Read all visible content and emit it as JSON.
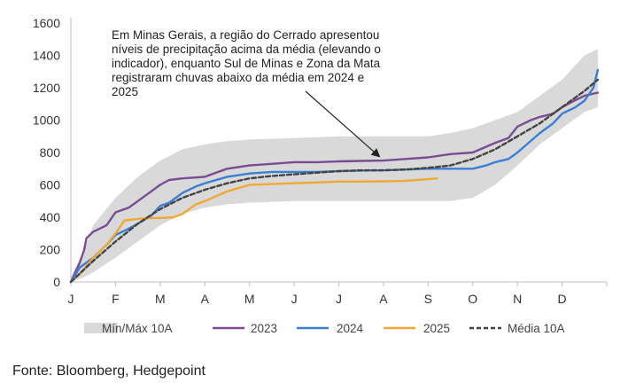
{
  "chart_data": {
    "type": "line",
    "title": "",
    "xlabel": "",
    "ylabel": "",
    "ylim": [
      0,
      1600
    ],
    "yticks": [
      0,
      200,
      400,
      600,
      800,
      1000,
      1200,
      1400,
      1600
    ],
    "xlim": [
      0,
      12
    ],
    "months": [
      "J",
      "F",
      "M",
      "A",
      "M",
      "J",
      "J",
      "A",
      "S",
      "O",
      "N",
      "D"
    ],
    "grid": false,
    "legend_position": "bottom",
    "annotation": {
      "lines": [
        "Em Minas Gerais, a região do Cerrado apresentou",
        "níveis de precipitação acima da média (elevando o",
        "indicador), enquanto Sul de Minas e Zona da Mata",
        "registraram chuvas abaixo da média em 2024 e",
        "2025"
      ],
      "arrow_to": [
        6.9,
        755
      ]
    },
    "band": {
      "name": "Mín/Máx 10A",
      "color": "#d9d9d9",
      "x": [
        0,
        0.3,
        0.5,
        1.0,
        1.5,
        2.0,
        2.5,
        3.0,
        3.5,
        4.0,
        5.0,
        6.0,
        7.0,
        8.0,
        8.5,
        9.0,
        9.5,
        10.0,
        10.5,
        11.0,
        11.5,
        11.8
      ],
      "min": [
        0,
        30,
        60,
        150,
        250,
        350,
        420,
        460,
        480,
        490,
        500,
        500,
        500,
        500,
        500,
        520,
        600,
        720,
        850,
        950,
        1050,
        1080
      ],
      "max": [
        30,
        200,
        350,
        520,
        650,
        750,
        820,
        850,
        870,
        880,
        890,
        900,
        900,
        900,
        920,
        950,
        1000,
        1050,
        1150,
        1250,
        1400,
        1440
      ]
    },
    "series": [
      {
        "name": "2023",
        "color": "#7b4b94",
        "style": "solid",
        "x": [
          0,
          0.1,
          0.2,
          0.3,
          0.35,
          0.5,
          0.8,
          1.0,
          1.3,
          1.5,
          1.8,
          2.0,
          2.2,
          2.5,
          3.0,
          3.3,
          3.5,
          4.0,
          4.5,
          5.0,
          5.5,
          6.0,
          6.5,
          7.0,
          7.5,
          8.0,
          8.5,
          9.0,
          9.5,
          9.8,
          10.0,
          10.3,
          10.5,
          10.8,
          11.0,
          11.2,
          11.5,
          11.8
        ],
        "y": [
          0,
          60,
          120,
          200,
          270,
          310,
          350,
          430,
          460,
          500,
          560,
          600,
          630,
          640,
          650,
          680,
          700,
          720,
          730,
          740,
          740,
          745,
          748,
          750,
          760,
          770,
          790,
          800,
          860,
          890,
          960,
          1000,
          1020,
          1040,
          1080,
          1110,
          1150,
          1170
        ]
      },
      {
        "name": "2024",
        "color": "#3a7fd5",
        "style": "solid",
        "x": [
          0,
          0.2,
          0.5,
          0.8,
          1.0,
          1.3,
          1.5,
          1.8,
          2.0,
          2.2,
          2.5,
          2.8,
          3.0,
          3.5,
          4.0,
          4.5,
          5.0,
          5.5,
          6.0,
          6.5,
          7.0,
          7.5,
          8.0,
          8.5,
          9.0,
          9.3,
          9.5,
          9.8,
          10.0,
          10.5,
          10.8,
          11.0,
          11.3,
          11.5,
          11.7,
          11.8
        ],
        "y": [
          0,
          90,
          150,
          230,
          290,
          330,
          360,
          410,
          470,
          490,
          550,
          590,
          610,
          650,
          670,
          680,
          680,
          680,
          685,
          688,
          690,
          695,
          700,
          700,
          700,
          720,
          740,
          760,
          800,
          920,
          980,
          1040,
          1080,
          1120,
          1200,
          1310
        ]
      },
      {
        "name": "2025",
        "color": "#f0a935",
        "style": "solid",
        "x": [
          0,
          0.2,
          0.5,
          0.8,
          1.0,
          1.2,
          1.5,
          1.8,
          2.0,
          2.3,
          2.5,
          2.8,
          3.0,
          3.5,
          4.0,
          4.5,
          5.0,
          5.5,
          6.0,
          6.5,
          7.0,
          7.5,
          8.0,
          8.2
        ],
        "y": [
          0,
          50,
          150,
          230,
          300,
          380,
          390,
          395,
          395,
          400,
          420,
          480,
          500,
          560,
          600,
          605,
          610,
          615,
          620,
          620,
          622,
          625,
          635,
          640
        ]
      },
      {
        "name": "Média 10A",
        "color": "#444444",
        "style": "dashed",
        "x": [
          0,
          0.5,
          1.0,
          1.5,
          2.0,
          2.5,
          3.0,
          3.5,
          4.0,
          4.5,
          5.0,
          5.5,
          6.0,
          6.5,
          7.0,
          7.5,
          8.0,
          8.5,
          9.0,
          9.5,
          10.0,
          10.5,
          11.0,
          11.5,
          11.8
        ],
        "y": [
          0,
          130,
          250,
          360,
          450,
          520,
          570,
          610,
          640,
          655,
          665,
          675,
          685,
          690,
          690,
          695,
          705,
          720,
          760,
          820,
          900,
          980,
          1080,
          1180,
          1250
        ]
      }
    ]
  },
  "source_note": "Fonte: Bloomberg, Hedgepoint"
}
